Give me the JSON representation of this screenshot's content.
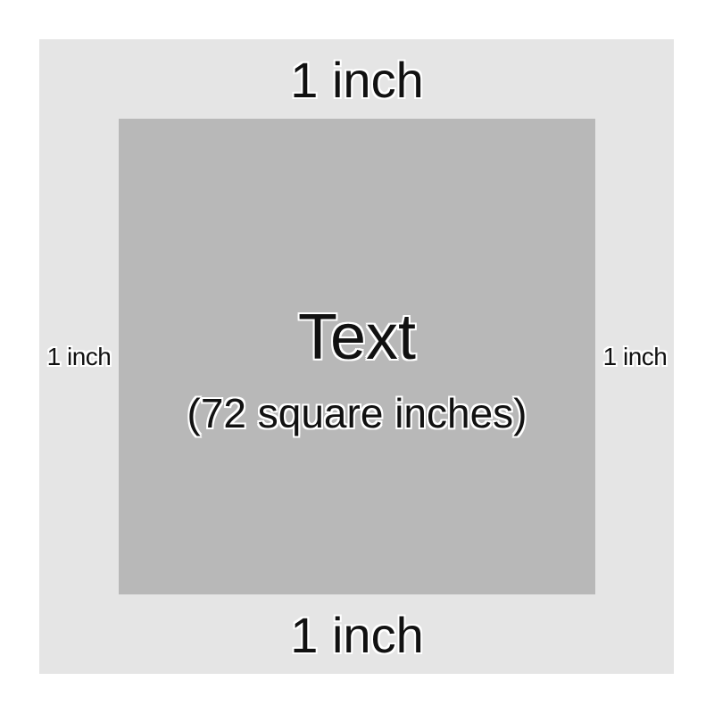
{
  "diagram": {
    "margins": {
      "top": "1 inch",
      "bottom": "1 inch",
      "left": "1 inch",
      "right": "1 inch"
    },
    "text_area": {
      "title": "Text",
      "subtitle": "(72 square inches)"
    },
    "colors": {
      "page": "#e5e5e5",
      "text_area": "#b8b8b8",
      "label_text": "#111111",
      "label_outline": "#ffffff"
    }
  }
}
